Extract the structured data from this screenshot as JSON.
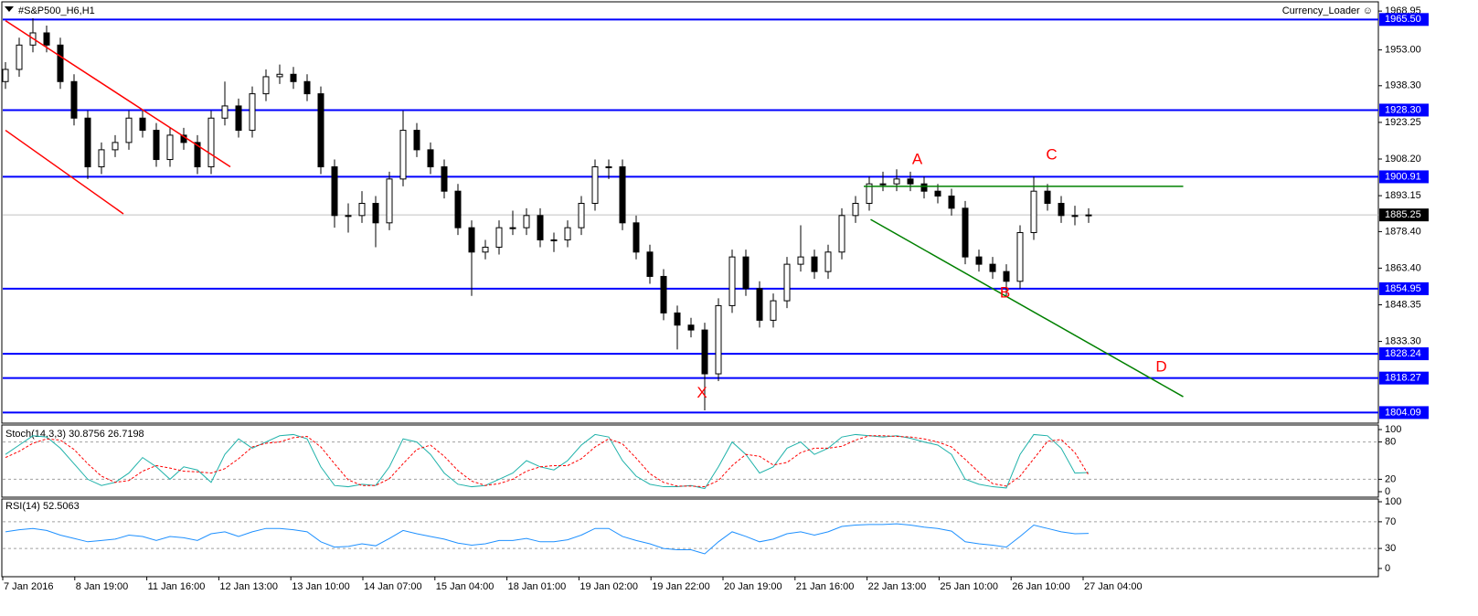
{
  "chart_data": [
    {
      "type": "candlestick",
      "symbol_label": "#S&P500_H6,H1",
      "indicator_label": "Currency_Loader ☺",
      "ylim": [
        1800.5,
        1972
      ],
      "yticks": [
        1968.95,
        {
          "value": 1953,
          "label": "1953.00"
        },
        {
          "value": 1938.3,
          "label": "1938.30"
        },
        1923.25,
        {
          "value": 1908.2,
          "label": "1908.20"
        },
        1893.15,
        {
          "value": 1878.4,
          "label": "1878.40"
        },
        {
          "value": 1863.4,
          "label": "1863.40"
        },
        1848.35,
        {
          "value": 1833.3,
          "label": "1833.30"
        }
      ],
      "levels": [
        {
          "value": 1965.5,
          "label": "1965.50"
        },
        {
          "value": 1928.3,
          "label": "1928.30"
        },
        {
          "value": 1900.91,
          "label": "1900.91"
        },
        {
          "value": 1854.95,
          "label": "1854.95"
        },
        {
          "value": 1828.24,
          "label": "1828.24"
        },
        {
          "value": 1818.27,
          "label": "1818.27"
        },
        {
          "value": 1804.09,
          "label": "1804.09"
        }
      ],
      "level_color": "#0000ff",
      "last_price": 1885.25,
      "candles": [
        [
          1940,
          1948,
          1937,
          1945
        ],
        [
          1945,
          1958,
          1942,
          1955
        ],
        [
          1955,
          1966,
          1952,
          1960
        ],
        [
          1960,
          1963,
          1952,
          1955
        ],
        [
          1955,
          1958,
          1937,
          1940
        ],
        [
          1940,
          1943,
          1922,
          1925
        ],
        [
          1925,
          1928,
          1900,
          1905
        ],
        [
          1905,
          1915,
          1902,
          1912
        ],
        [
          1912,
          1918,
          1909,
          1915
        ],
        [
          1915,
          1928,
          1912,
          1925
        ],
        [
          1925,
          1928,
          1917,
          1920
        ],
        [
          1920,
          1923,
          1905,
          1908
        ],
        [
          1908,
          1921,
          1905,
          1918
        ],
        [
          1918,
          1921,
          1912,
          1915
        ],
        [
          1915,
          1918,
          1902,
          1905
        ],
        [
          1905,
          1928,
          1902,
          1925
        ],
        [
          1925,
          1940,
          1922,
          1930
        ],
        [
          1930,
          1933,
          1917,
          1920
        ],
        [
          1920,
          1938,
          1917,
          1935
        ],
        [
          1935,
          1945,
          1932,
          1942
        ],
        [
          1942,
          1947,
          1939,
          1943
        ],
        [
          1943,
          1946,
          1937,
          1940
        ],
        [
          1940,
          1943,
          1932,
          1935
        ],
        [
          1935,
          1938,
          1902,
          1905
        ],
        [
          1905,
          1908,
          1880,
          1885
        ],
        [
          1885,
          1890,
          1878,
          1885
        ],
        [
          1885,
          1895,
          1882,
          1890
        ],
        [
          1890,
          1893,
          1872,
          1882
        ],
        [
          1882,
          1903,
          1879,
          1900
        ],
        [
          1900,
          1928,
          1897,
          1920
        ],
        [
          1920,
          1923,
          1909,
          1912
        ],
        [
          1912,
          1915,
          1902,
          1905
        ],
        [
          1905,
          1908,
          1892,
          1895
        ],
        [
          1895,
          1898,
          1877,
          1880
        ],
        [
          1880,
          1883,
          1852,
          1870
        ],
        [
          1870,
          1875,
          1867,
          1872
        ],
        [
          1872,
          1883,
          1869,
          1880
        ],
        [
          1880,
          1887,
          1877,
          1880
        ],
        [
          1880,
          1888,
          1877,
          1885
        ],
        [
          1885,
          1888,
          1872,
          1875
        ],
        [
          1875,
          1878,
          1870,
          1875
        ],
        [
          1875,
          1883,
          1872,
          1880
        ],
        [
          1880,
          1893,
          1877,
          1890
        ],
        [
          1890,
          1908,
          1887,
          1905
        ],
        [
          1905,
          1908,
          1900,
          1905
        ],
        [
          1905,
          1908,
          1879,
          1882
        ],
        [
          1882,
          1885,
          1867,
          1870
        ],
        [
          1870,
          1873,
          1857,
          1860
        ],
        [
          1860,
          1863,
          1842,
          1845
        ],
        [
          1845,
          1848,
          1830,
          1840
        ],
        [
          1840,
          1843,
          1835,
          1838
        ],
        [
          1838,
          1841,
          1805,
          1820
        ],
        [
          1820,
          1851,
          1817,
          1848
        ],
        [
          1848,
          1871,
          1845,
          1868
        ],
        [
          1868,
          1871,
          1852,
          1855
        ],
        [
          1855,
          1858,
          1839,
          1842
        ],
        [
          1842,
          1853,
          1839,
          1850
        ],
        [
          1850,
          1868,
          1847,
          1865
        ],
        [
          1865,
          1881,
          1862,
          1868
        ],
        [
          1868,
          1871,
          1859,
          1862
        ],
        [
          1862,
          1873,
          1859,
          1870
        ],
        [
          1870,
          1888,
          1867,
          1885
        ],
        [
          1885,
          1893,
          1882,
          1890
        ],
        [
          1890,
          1901,
          1887,
          1898
        ],
        [
          1898,
          1903,
          1895,
          1898
        ],
        [
          1898,
          1904,
          1895,
          1900
        ],
        [
          1900,
          1903,
          1895,
          1898
        ],
        [
          1898,
          1901,
          1892,
          1895
        ],
        [
          1895,
          1898,
          1890,
          1893
        ],
        [
          1893,
          1896,
          1885,
          1888
        ],
        [
          1888,
          1891,
          1865,
          1868
        ],
        [
          1868,
          1871,
          1862,
          1865
        ],
        [
          1865,
          1868,
          1859,
          1862
        ],
        [
          1862,
          1865,
          1852,
          1858
        ],
        [
          1858,
          1881,
          1855,
          1878
        ],
        [
          1878,
          1901,
          1875,
          1895
        ],
        [
          1895,
          1898,
          1887,
          1890
        ],
        [
          1890,
          1893,
          1882,
          1885
        ],
        [
          1885,
          1889,
          1881,
          1885
        ],
        [
          1885,
          1888,
          1882,
          1885.25
        ]
      ],
      "trendlines": [
        {
          "color": "#ff0000",
          "from": [
            0,
            1965
          ],
          "to": [
            16.4,
            1905
          ]
        },
        {
          "color": "#ff0000",
          "from": [
            0,
            1920
          ],
          "to": [
            8.6,
            1885.7
          ]
        },
        {
          "color": "#008000",
          "from": [
            62.6,
            1897
          ],
          "to": [
            85.9,
            1897
          ]
        },
        {
          "color": "#008000",
          "from": [
            63.1,
            1883.4
          ],
          "to": [
            85.9,
            1810.6
          ]
        }
      ],
      "annotations": [
        {
          "text": "A",
          "at": [
            66.5,
            1907.8
          ]
        },
        {
          "text": "B",
          "at": [
            72.9,
            1853
          ]
        },
        {
          "text": "C",
          "at": [
            76.3,
            1909.7
          ]
        },
        {
          "text": "D",
          "at": [
            84.3,
            1822.6
          ]
        },
        {
          "text": "X",
          "at": [
            50.8,
            1811.9
          ]
        }
      ],
      "annotation_color": "#ff0000"
    },
    {
      "type": "line",
      "title": "Stoch(14,3,3) 30.8756 26.7198",
      "ylim": [
        0,
        100
      ],
      "yticks": [
        100,
        80,
        20,
        0
      ],
      "levels": [
        80,
        20
      ],
      "series": [
        {
          "color": "#20b2aa",
          "dashed": false,
          "values": [
            60,
            75,
            90,
            88,
            70,
            45,
            20,
            10,
            15,
            30,
            55,
            40,
            20,
            40,
            35,
            15,
            60,
            85,
            70,
            80,
            90,
            92,
            85,
            40,
            10,
            8,
            12,
            10,
            40,
            85,
            80,
            60,
            30,
            12,
            8,
            10,
            20,
            30,
            50,
            40,
            35,
            50,
            75,
            92,
            88,
            50,
            25,
            12,
            8,
            8,
            10,
            5,
            40,
            80,
            60,
            30,
            40,
            70,
            80,
            60,
            70,
            88,
            92,
            90,
            88,
            90,
            86,
            80,
            75,
            60,
            20,
            12,
            8,
            6,
            60,
            92,
            90,
            70,
            30,
            30.8756
          ]
        },
        {
          "color": "#ff0000",
          "dashed": true,
          "values": [
            55,
            65,
            78,
            85,
            83,
            68,
            45,
            25,
            15,
            18,
            33,
            42,
            38,
            33,
            32,
            30,
            37,
            53,
            72,
            78,
            80,
            87,
            89,
            72,
            45,
            19,
            10,
            10,
            21,
            45,
            68,
            75,
            57,
            34,
            17,
            10,
            13,
            20,
            33,
            40,
            42,
            42,
            53,
            72,
            85,
            77,
            54,
            29,
            15,
            9,
            9,
            8,
            18,
            42,
            60,
            57,
            43,
            47,
            63,
            70,
            70,
            73,
            83,
            90,
            90,
            89,
            88,
            85,
            80,
            72,
            52,
            31,
            13,
            9,
            25,
            53,
            81,
            84,
            63,
            26.7198
          ]
        }
      ]
    },
    {
      "type": "line",
      "title": "RSI(14) 52.5063",
      "ylim": [
        0,
        100
      ],
      "yticks": [
        100,
        70,
        30,
        0
      ],
      "levels": [
        70,
        30
      ],
      "series": [
        {
          "color": "#1e90ff",
          "dashed": false,
          "values": [
            55,
            58,
            60,
            57,
            50,
            45,
            40,
            42,
            44,
            50,
            48,
            42,
            48,
            46,
            42,
            52,
            55,
            48,
            55,
            60,
            60,
            58,
            55,
            40,
            32,
            33,
            37,
            34,
            45,
            57,
            52,
            48,
            44,
            38,
            35,
            37,
            42,
            42,
            45,
            40,
            40,
            43,
            50,
            60,
            60,
            48,
            42,
            37,
            30,
            28,
            28,
            22,
            40,
            55,
            48,
            40,
            44,
            52,
            55,
            50,
            55,
            63,
            65,
            66,
            66,
            67,
            65,
            62,
            60,
            56,
            40,
            37,
            35,
            32,
            48,
            65,
            60,
            55,
            52,
            52.5063
          ]
        }
      ],
      "x_labels": [
        "7 Jan 2016",
        "8 Jan 19:00",
        "11 Jan 16:00",
        "12 Jan 13:00",
        "13 Jan 10:00",
        "14 Jan 07:00",
        "15 Jan 04:00",
        "18 Jan 01:00",
        "19 Jan 02:00",
        "19 Jan 22:00",
        "20 Jan 19:00",
        "21 Jan 16:00",
        "22 Jan 13:00",
        "25 Jan 10:00",
        "26 Jan 10:00",
        "27 Jan 04:00"
      ]
    }
  ]
}
